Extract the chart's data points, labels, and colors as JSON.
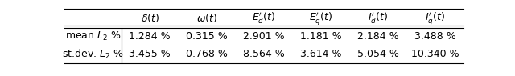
{
  "col_headers": [
    "$\\delta(t)$",
    "$\\omega(t)$",
    "$E_d^{\\prime}(t)$",
    "$E_q^{\\prime}(t)$",
    "$I_d^{\\prime}(t)$",
    "$I_q^{\\prime}(t)$"
  ],
  "row_headers": [
    "mean $L_2$ %",
    "st.dev. $L_2$ %"
  ],
  "row1": [
    "1.284 %",
    "0.315 %",
    "2.901 %",
    "1.181 %",
    "2.184 %",
    "3.488 %"
  ],
  "row2": [
    "3.455 %",
    "0.768 %",
    "8.564 %",
    "3.614 %",
    "5.054 %",
    "10.340 %"
  ],
  "background_color": "#ffffff",
  "font_size": 9.0,
  "header_font_size": 9.0
}
